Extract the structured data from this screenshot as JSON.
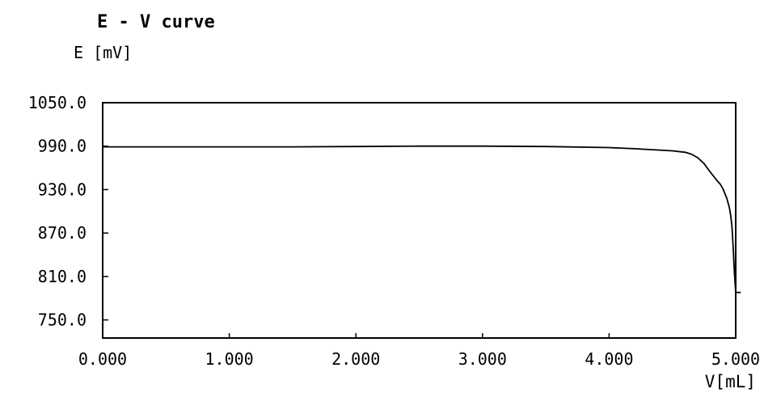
{
  "chart_data": {
    "type": "line",
    "title": "E - V curve",
    "ylabel": "E [mV]",
    "xlabel": "V[mL]",
    "xlim": [
      0.0,
      5.0
    ],
    "ylim": [
      725.0,
      1050.0
    ],
    "x_ticks": [
      0.0,
      1.0,
      2.0,
      3.0,
      4.0,
      5.0
    ],
    "x_tick_labels": [
      "0.000",
      "1.000",
      "2.000",
      "3.000",
      "4.000",
      "5.000"
    ],
    "y_ticks": [
      1050.0,
      990.0,
      930.0,
      870.0,
      810.0,
      750.0
    ],
    "y_tick_labels": [
      "1050.0",
      "990.0",
      "930.0",
      "870.0",
      "810.0",
      "750.0"
    ],
    "grid": false,
    "series": [
      {
        "x": [
          0.0,
          0.5,
          1.0,
          1.5,
          2.0,
          2.5,
          3.0,
          3.5,
          4.0,
          4.2,
          4.4,
          4.5,
          4.6,
          4.65,
          4.7,
          4.75,
          4.8,
          4.85,
          4.88,
          4.9,
          4.93,
          4.95,
          4.96,
          4.97,
          4.98,
          4.99,
          5.0,
          5.04
        ],
        "y": [
          989.0,
          989.0,
          989.0,
          989.0,
          989.5,
          990.0,
          990.0,
          989.5,
          988.0,
          986.5,
          984.5,
          983.5,
          981.5,
          979.0,
          974.0,
          966.0,
          954.0,
          943.0,
          937.0,
          931.0,
          918.0,
          905.0,
          895.0,
          880.0,
          850.0,
          815.0,
          788.0,
          788.0
        ]
      }
    ]
  }
}
